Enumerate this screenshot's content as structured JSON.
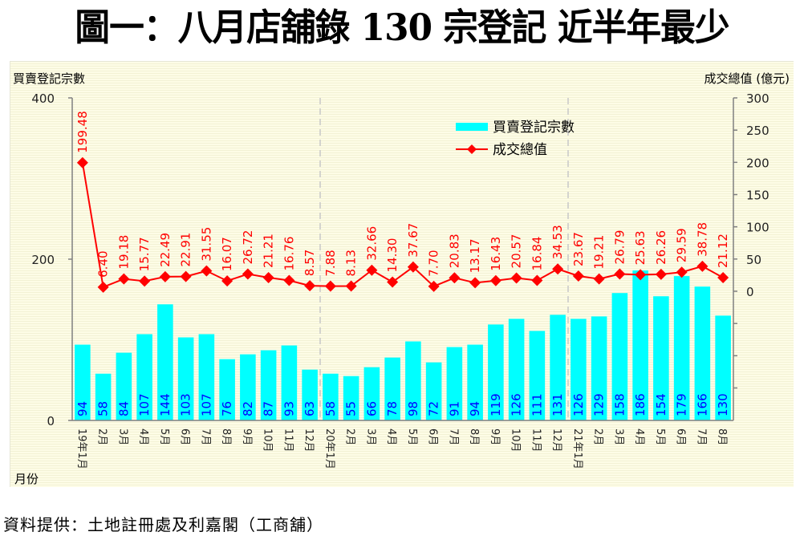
{
  "title": "圖一：八月店舖錄 130 宗登記  近半年最少",
  "footer": "資料提供：土地註冊處及利嘉閣（工商舖）",
  "chart_data": {
    "type": "bar+line",
    "title": "圖一：八月店舖錄 130 宗登記  近半年最少",
    "xlabel": "月份",
    "ylabel_left": "買賣登記宗數",
    "ylabel_right": "成交總值 (億元)",
    "ylim_left": [
      0,
      400
    ],
    "yticks_left": [
      "0",
      "200",
      "400"
    ],
    "ylim_right": [
      0,
      300
    ],
    "yticks_right": [
      "0",
      "50",
      "100",
      "150",
      "200",
      "250",
      "300"
    ],
    "legend_position": "top-center",
    "year_dividers_after": [
      "19年12月",
      "20年12月"
    ],
    "categories": [
      "19年1月",
      "2月",
      "3月",
      "4月",
      "5月",
      "6月",
      "7月",
      "8月",
      "9月",
      "10月",
      "11月",
      "12月",
      "20年1月",
      "2月",
      "3月",
      "4月",
      "5月",
      "6月",
      "7月",
      "8月",
      "9月",
      "10月",
      "11月",
      "12月",
      "21年1月",
      "2月",
      "3月",
      "4月",
      "5月",
      "6月",
      "7月",
      "8月"
    ],
    "series": [
      {
        "name": "買賣登記宗數",
        "type": "bar",
        "axis": "left",
        "color": "#00ffff",
        "label_color": "#0000ff",
        "values": [
          94,
          58,
          84,
          107,
          144,
          103,
          107,
          76,
          82,
          87,
          93,
          63,
          58,
          55,
          66,
          78,
          98,
          72,
          91,
          94,
          119,
          126,
          111,
          131,
          126,
          129,
          158,
          186,
          154,
          179,
          166,
          130
        ]
      },
      {
        "name": "成交總值",
        "type": "line",
        "axis": "right",
        "color": "#ff0000",
        "marker": "diamond",
        "labels": [
          "199.48",
          "6.40",
          "19.18",
          "15.77",
          "22.49",
          "22.91",
          "31.55",
          "16.07",
          "26.72",
          "21.21",
          "16.76",
          "8.57",
          "7.88",
          "8.13",
          "32.66",
          "14.30",
          "37.67",
          "7.70",
          "20.83",
          "13.17",
          "16.43",
          "20.57",
          "16.84",
          "34.53",
          "23.67",
          "19.21",
          "26.79",
          "25.63",
          "26.26",
          "29.59",
          "38.78",
          "21.12"
        ],
        "values": [
          199.48,
          6.4,
          19.18,
          15.77,
          22.49,
          22.91,
          31.55,
          16.07,
          26.72,
          21.21,
          16.76,
          8.57,
          7.88,
          8.13,
          32.66,
          14.3,
          37.67,
          7.7,
          20.83,
          13.17,
          16.43,
          20.57,
          16.84,
          34.53,
          23.67,
          19.21,
          26.79,
          25.63,
          26.26,
          29.59,
          38.78,
          21.12
        ]
      }
    ]
  }
}
